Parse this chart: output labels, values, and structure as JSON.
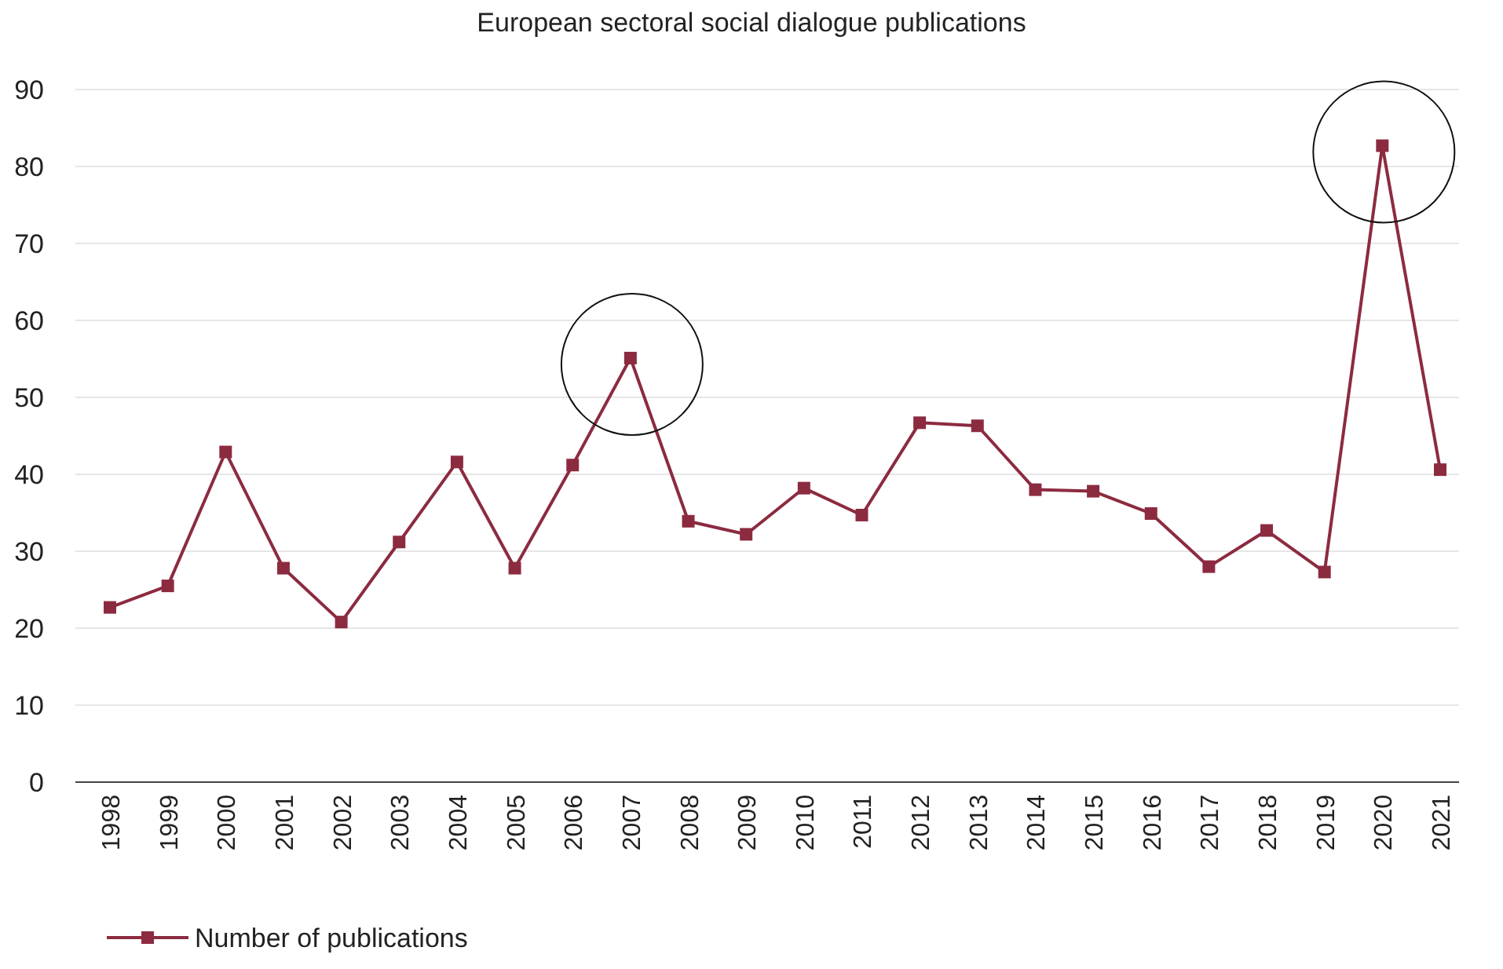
{
  "chart_data": {
    "type": "line",
    "title": "European sectoral social dialogue publications",
    "categories": [
      "1998",
      "1999",
      "2000",
      "2001",
      "2002",
      "2003",
      "2004",
      "2005",
      "2006",
      "2007",
      "2008",
      "2009",
      "2010",
      "2011",
      "2012",
      "2013",
      "2014",
      "2015",
      "2016",
      "2017",
      "2018",
      "2019",
      "2020",
      "2021"
    ],
    "series": [
      {
        "name": "Number of publications",
        "color": "#8c2b40",
        "values": [
          22.7,
          25.5,
          42.9,
          27.8,
          20.8,
          31.2,
          41.6,
          27.8,
          41.2,
          55.1,
          33.9,
          32.2,
          38.2,
          34.7,
          46.7,
          46.3,
          38,
          37.8,
          34.9,
          28,
          32.7,
          27.3,
          82.7,
          40.6
        ]
      }
    ],
    "ylim": [
      0,
      90
    ],
    "yticks": [
      0,
      10,
      20,
      30,
      40,
      50,
      60,
      70,
      80,
      90
    ],
    "grid": "y",
    "legend": "bottom left",
    "marker": "square",
    "line_style": "solid"
  }
}
